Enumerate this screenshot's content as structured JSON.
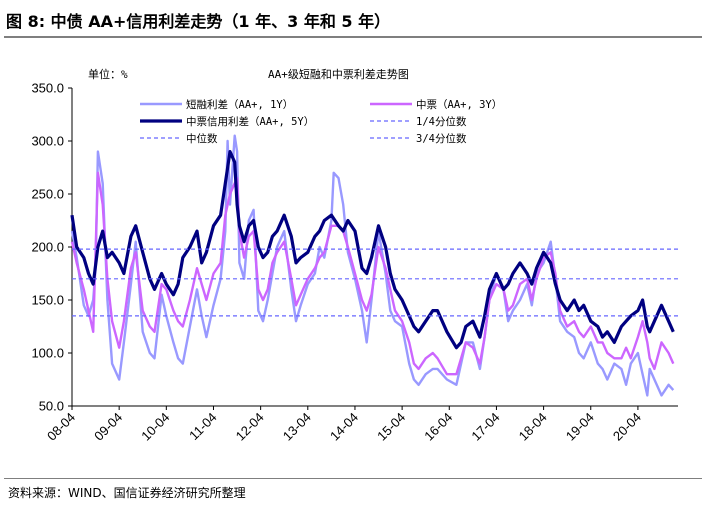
{
  "figure": {
    "title": "图 8: 中债 AA+信用利差走势（1 年、3 年和 5 年）",
    "source": "资料来源：WIND、国信证券经济研究所整理"
  },
  "chart_data": {
    "type": "line",
    "title": "AA+级短融和中票利差走势图",
    "unit_label": "单位：%",
    "xlabel": "",
    "ylabel": "",
    "ylim": [
      50.0,
      350.0
    ],
    "yticks": [
      "350.0",
      "300.0",
      "250.0",
      "200.0",
      "150.0",
      "100.0",
      "50.0"
    ],
    "ytick_values": [
      350,
      300,
      250,
      200,
      150,
      100,
      50
    ],
    "xlim": [
      2008.25,
      2021.1
    ],
    "xticks": [
      "08-04",
      "09-04",
      "10-04",
      "11-04",
      "12-04",
      "13-04",
      "14-04",
      "15-04",
      "16-04",
      "17-04",
      "18-04",
      "19-04",
      "20-04"
    ],
    "xtick_values": [
      2008.25,
      2009.25,
      2010.25,
      2011.25,
      2012.25,
      2013.25,
      2014.25,
      2015.25,
      2016.25,
      2017.25,
      2018.25,
      2019.25,
      2020.25
    ],
    "grid": false,
    "legend": "top",
    "series": [
      {
        "name": "短融利差（AA+, 1Y）",
        "color": "#9999ff",
        "width": 2.4,
        "x": [
          2008.25,
          2008.35,
          2008.5,
          2008.6,
          2008.7,
          2008.75,
          2008.8,
          2008.9,
          2009.0,
          2009.1,
          2009.25,
          2009.35,
          2009.5,
          2009.6,
          2009.75,
          2009.9,
          2010.0,
          2010.15,
          2010.25,
          2010.4,
          2010.5,
          2010.6,
          2010.75,
          2010.9,
          2011.0,
          2011.1,
          2011.25,
          2011.4,
          2011.5,
          2011.55,
          2011.6,
          2011.7,
          2011.75,
          2011.8,
          2011.9,
          2012.0,
          2012.1,
          2012.2,
          2012.3,
          2012.4,
          2012.5,
          2012.6,
          2012.75,
          2012.9,
          2013.0,
          2013.1,
          2013.25,
          2013.4,
          2013.5,
          2013.6,
          2013.75,
          2013.8,
          2013.9,
          2014.0,
          2014.1,
          2014.25,
          2014.4,
          2014.5,
          2014.6,
          2014.75,
          2014.9,
          2015.0,
          2015.1,
          2015.25,
          2015.4,
          2015.5,
          2015.6,
          2015.75,
          2015.9,
          2016.0,
          2016.2,
          2016.4,
          2016.5,
          2016.6,
          2016.75,
          2016.9,
          2017.0,
          2017.1,
          2017.25,
          2017.4,
          2017.5,
          2017.6,
          2017.75,
          2017.9,
          2018.0,
          2018.1,
          2018.25,
          2018.4,
          2018.5,
          2018.6,
          2018.75,
          2018.9,
          2019.0,
          2019.1,
          2019.25,
          2019.4,
          2019.5,
          2019.6,
          2019.75,
          2019.9,
          2020.0,
          2020.1,
          2020.25,
          2020.35,
          2020.45,
          2020.5,
          2020.6,
          2020.75,
          2020.9,
          2021.0
        ],
        "y": [
          215,
          190,
          145,
          135,
          150,
          180,
          290,
          260,
          150,
          90,
          75,
          110,
          165,
          205,
          120,
          100,
          95,
          155,
          135,
          110,
          95,
          90,
          125,
          160,
          135,
          115,
          145,
          170,
          215,
          300,
          240,
          305,
          290,
          185,
          170,
          225,
          235,
          140,
          130,
          150,
          175,
          200,
          215,
          160,
          130,
          145,
          165,
          175,
          200,
          190,
          225,
          270,
          265,
          240,
          195,
          170,
          140,
          110,
          150,
          215,
          175,
          140,
          130,
          125,
          90,
          75,
          70,
          80,
          85,
          85,
          75,
          70,
          90,
          110,
          110,
          85,
          115,
          150,
          175,
          160,
          130,
          140,
          150,
          165,
          145,
          175,
          185,
          205,
          170,
          130,
          120,
          115,
          100,
          95,
          110,
          90,
          85,
          75,
          90,
          85,
          70,
          90,
          100,
          80,
          60,
          85,
          75,
          60,
          70,
          65
        ]
      },
      {
        "name": "中票（AA+, 3Y）",
        "color": "#cc66ff",
        "width": 2.4,
        "x": [
          2008.25,
          2008.35,
          2008.5,
          2008.6,
          2008.7,
          2008.8,
          2008.9,
          2009.0,
          2009.1,
          2009.25,
          2009.35,
          2009.5,
          2009.6,
          2009.75,
          2009.9,
          2010.0,
          2010.15,
          2010.25,
          2010.4,
          2010.5,
          2010.6,
          2010.75,
          2010.9,
          2011.0,
          2011.1,
          2011.25,
          2011.4,
          2011.5,
          2011.6,
          2011.7,
          2011.75,
          2011.8,
          2011.9,
          2012.0,
          2012.1,
          2012.2,
          2012.3,
          2012.4,
          2012.5,
          2012.6,
          2012.75,
          2012.9,
          2013.0,
          2013.1,
          2013.25,
          2013.4,
          2013.5,
          2013.6,
          2013.75,
          2013.9,
          2014.0,
          2014.1,
          2014.25,
          2014.4,
          2014.5,
          2014.6,
          2014.75,
          2014.9,
          2015.0,
          2015.1,
          2015.25,
          2015.4,
          2015.5,
          2015.6,
          2015.75,
          2015.9,
          2016.0,
          2016.2,
          2016.4,
          2016.5,
          2016.6,
          2016.75,
          2016.9,
          2017.0,
          2017.1,
          2017.25,
          2017.4,
          2017.5,
          2017.6,
          2017.75,
          2017.9,
          2018.0,
          2018.1,
          2018.25,
          2018.4,
          2018.5,
          2018.6,
          2018.75,
          2018.9,
          2019.0,
          2019.1,
          2019.25,
          2019.4,
          2019.5,
          2019.6,
          2019.75,
          2019.9,
          2020.0,
          2020.1,
          2020.25,
          2020.35,
          2020.45,
          2020.5,
          2020.6,
          2020.75,
          2020.9,
          2021.0
        ],
        "y": [
          205,
          185,
          160,
          140,
          120,
          270,
          240,
          170,
          130,
          105,
          130,
          180,
          195,
          140,
          125,
          120,
          165,
          160,
          140,
          130,
          125,
          150,
          180,
          165,
          150,
          175,
          185,
          230,
          250,
          260,
          265,
          215,
          190,
          210,
          215,
          160,
          150,
          160,
          185,
          195,
          205,
          170,
          145,
          155,
          170,
          180,
          190,
          195,
          220,
          220,
          215,
          200,
          175,
          150,
          140,
          155,
          200,
          180,
          160,
          140,
          130,
          110,
          90,
          85,
          95,
          100,
          95,
          80,
          80,
          95,
          110,
          105,
          90,
          115,
          150,
          165,
          160,
          140,
          145,
          165,
          170,
          150,
          170,
          190,
          195,
          175,
          140,
          125,
          130,
          120,
          115,
          125,
          110,
          110,
          100,
          95,
          95,
          105,
          95,
          115,
          130,
          110,
          95,
          85,
          110,
          100,
          90
        ]
      },
      {
        "name": "中票信用利差（AA+, 5Y）",
        "color": "#000080",
        "width": 3.2,
        "x": [
          2008.25,
          2008.35,
          2008.5,
          2008.6,
          2008.7,
          2008.8,
          2008.9,
          2009.0,
          2009.1,
          2009.25,
          2009.35,
          2009.5,
          2009.6,
          2009.75,
          2009.9,
          2010.0,
          2010.15,
          2010.25,
          2010.4,
          2010.5,
          2010.6,
          2010.75,
          2010.9,
          2011.0,
          2011.1,
          2011.25,
          2011.4,
          2011.5,
          2011.6,
          2011.7,
          2011.75,
          2011.8,
          2011.9,
          2012.0,
          2012.1,
          2012.2,
          2012.3,
          2012.4,
          2012.5,
          2012.6,
          2012.75,
          2012.9,
          2013.0,
          2013.1,
          2013.25,
          2013.4,
          2013.5,
          2013.6,
          2013.75,
          2013.9,
          2014.0,
          2014.1,
          2014.25,
          2014.4,
          2014.5,
          2014.6,
          2014.75,
          2014.9,
          2015.0,
          2015.1,
          2015.25,
          2015.4,
          2015.5,
          2015.6,
          2015.75,
          2015.9,
          2016.0,
          2016.2,
          2016.4,
          2016.5,
          2016.6,
          2016.75,
          2016.9,
          2017.0,
          2017.1,
          2017.25,
          2017.4,
          2017.5,
          2017.6,
          2017.75,
          2017.9,
          2018.0,
          2018.1,
          2018.25,
          2018.4,
          2018.5,
          2018.6,
          2018.75,
          2018.9,
          2019.0,
          2019.1,
          2019.25,
          2019.4,
          2019.5,
          2019.6,
          2019.75,
          2019.9,
          2020.0,
          2020.1,
          2020.25,
          2020.35,
          2020.45,
          2020.5,
          2020.6,
          2020.75,
          2020.9,
          2021.0
        ],
        "y": [
          230,
          200,
          190,
          175,
          165,
          200,
          215,
          190,
          195,
          185,
          175,
          210,
          220,
          195,
          170,
          160,
          175,
          165,
          155,
          165,
          190,
          200,
          215,
          185,
          195,
          220,
          230,
          260,
          290,
          280,
          240,
          220,
          205,
          220,
          225,
          200,
          190,
          195,
          210,
          215,
          230,
          210,
          185,
          190,
          195,
          210,
          215,
          225,
          230,
          220,
          215,
          225,
          215,
          180,
          175,
          190,
          220,
          200,
          175,
          160,
          150,
          135,
          125,
          120,
          130,
          140,
          140,
          120,
          105,
          110,
          125,
          130,
          115,
          135,
          160,
          175,
          160,
          165,
          175,
          185,
          175,
          165,
          180,
          195,
          185,
          165,
          150,
          140,
          150,
          140,
          145,
          130,
          125,
          115,
          120,
          110,
          125,
          130,
          135,
          140,
          150,
          125,
          120,
          130,
          145,
          130,
          120
        ]
      },
      {
        "name": "1/4分位数",
        "color": "#6666ff",
        "width": 1.2,
        "dashed": true,
        "constant": 135
      },
      {
        "name": "中位数",
        "color": "#6666ff",
        "width": 1.2,
        "dashed": true,
        "constant": 170
      },
      {
        "name": "3/4分位数",
        "color": "#6666ff",
        "width": 1.2,
        "dashed": true,
        "constant": 198
      }
    ]
  }
}
